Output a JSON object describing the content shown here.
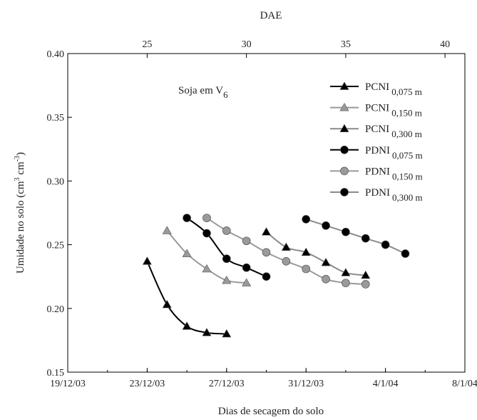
{
  "chart_data": {
    "type": "line",
    "title": "",
    "xlabel": "Dias de secagem do solo",
    "x2label": "DAE",
    "ylabel": {
      "base": "Umidade no solo (cm",
      "sup1": "3",
      "mid": " cm",
      "sup2": "-3",
      "end": ")"
    },
    "ylim": [
      0.15,
      0.4
    ],
    "yticks": [
      0.15,
      0.2,
      0.25,
      0.3,
      0.35,
      0.4
    ],
    "ytick_labels": [
      "0.15",
      "0.20",
      "0.25",
      "0.30",
      "0.35",
      "0.40"
    ],
    "xlim": [
      "19/12/03",
      "8/1/04"
    ],
    "xticks": [
      "19/12/03",
      "23/12/03",
      "27/12/03",
      "31/12/03",
      "4/1/04",
      "8/1/04"
    ],
    "x2ticks": [
      "25",
      "30",
      "35",
      "40"
    ],
    "annotation": {
      "text": "Soja em V",
      "sub": "6"
    },
    "grid": false,
    "legend_position": "top-right",
    "series": [
      {
        "name": "PCNI",
        "sub": "0,075 m",
        "marker": "triangle",
        "marker_color": "#000000",
        "line_color": "#000000",
        "x": [
          "23/12/03",
          "24/12/03",
          "25/12/03",
          "26/12/03",
          "27/12/03"
        ],
        "y": [
          0.237,
          0.203,
          0.186,
          0.181,
          0.18
        ]
      },
      {
        "name": "PCNI",
        "sub": "0,150 m",
        "marker": "triangle",
        "marker_color": "#9a9a9a",
        "line_color": "#9a9a9a",
        "x": [
          "24/12/03",
          "25/12/03",
          "26/12/03",
          "27/12/03",
          "28/12/03"
        ],
        "y": [
          0.261,
          0.243,
          0.231,
          0.222,
          0.22
        ]
      },
      {
        "name": "PCNI",
        "sub": "0,300 m",
        "marker": "triangle",
        "marker_color": "#000000",
        "line_color": "#8a8a8a",
        "x": [
          "29/12/03",
          "30/12/03",
          "31/12/03",
          "1/1/04",
          "2/1/04",
          "3/1/04"
        ],
        "y": [
          0.26,
          0.248,
          0.244,
          0.236,
          0.228,
          0.226
        ]
      },
      {
        "name": "PDNI",
        "sub": "0,075 m",
        "marker": "circle",
        "marker_color": "#000000",
        "line_color": "#000000",
        "x": [
          "25/12/03",
          "26/12/03",
          "27/12/03",
          "28/12/03",
          "29/12/03"
        ],
        "y": [
          0.271,
          0.259,
          0.239,
          0.232,
          0.225
        ]
      },
      {
        "name": "PDNI",
        "sub": "0,150 m",
        "marker": "circle",
        "marker_color": "#9a9a9a",
        "line_color": "#9a9a9a",
        "x": [
          "26/12/03",
          "27/12/03",
          "28/12/03",
          "29/12/03",
          "30/12/03",
          "31/12/03",
          "1/1/04",
          "2/1/04",
          "3/1/04"
        ],
        "y": [
          0.271,
          0.261,
          0.253,
          0.244,
          0.237,
          0.231,
          0.223,
          0.22,
          0.219
        ]
      },
      {
        "name": "PDNI",
        "sub": "0,300 m",
        "marker": "circle",
        "marker_color": "#000000",
        "line_color": "#8a8a8a",
        "x": [
          "31/12/03",
          "1/1/04",
          "2/1/04",
          "3/1/04",
          "4/1/04",
          "5/1/04"
        ],
        "y": [
          0.27,
          0.265,
          0.26,
          0.255,
          0.25,
          0.243
        ]
      }
    ]
  }
}
